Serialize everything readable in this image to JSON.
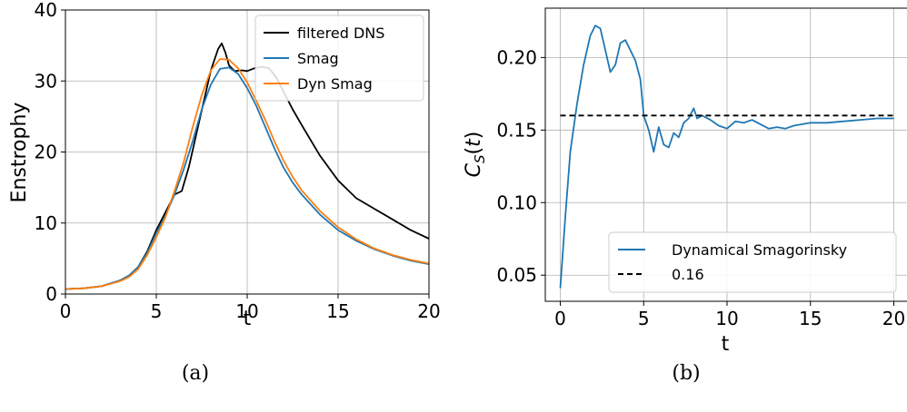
{
  "chart_data": [
    {
      "type": "line",
      "caption": "(a)",
      "xlabel": "t",
      "ylabel": "Enstrophy",
      "xlim": [
        0,
        20
      ],
      "ylim": [
        0,
        40
      ],
      "xticks": [
        0,
        5,
        10,
        15,
        20
      ],
      "yticks": [
        0,
        10,
        20,
        30,
        40
      ],
      "grid": true,
      "legend_position": "top-right",
      "series": [
        {
          "name": "filtered DNS",
          "color": "#000000",
          "x": [
            0,
            1,
            2,
            3,
            3.5,
            4,
            4.5,
            5,
            5.5,
            6,
            6.4,
            6.8,
            7.2,
            7.6,
            8,
            8.4,
            8.6,
            8.8,
            9,
            9.3,
            9.7,
            10,
            10.4,
            10.8,
            11.2,
            11.6,
            12,
            12.5,
            13,
            14,
            15,
            16,
            17,
            18,
            19,
            20
          ],
          "y": [
            0.7,
            0.8,
            1.1,
            1.9,
            2.6,
            3.8,
            6,
            9,
            11.5,
            14,
            14.5,
            18,
            22.5,
            27,
            31.5,
            34.5,
            35.3,
            34,
            32.2,
            31.4,
            31.5,
            31.4,
            31.8,
            32,
            31.8,
            30.5,
            28.5,
            26,
            23.8,
            19.5,
            16,
            13.5,
            12,
            10.5,
            9,
            7.8
          ]
        },
        {
          "name": "Smag",
          "color": "#1f77b4",
          "x": [
            0,
            1,
            2,
            3,
            3.5,
            4,
            4.5,
            5,
            5.5,
            6,
            6.5,
            7,
            7.5,
            8,
            8.5,
            9,
            9.5,
            10,
            10.5,
            11,
            11.5,
            12,
            12.5,
            13,
            14,
            15,
            16,
            17,
            18,
            19,
            20
          ],
          "y": [
            0.7,
            0.8,
            1.1,
            1.9,
            2.6,
            3.8,
            5.8,
            8.6,
            11,
            14,
            17.5,
            21.5,
            26,
            29.5,
            31.7,
            31.9,
            31,
            29,
            26.5,
            23.5,
            20.5,
            17.8,
            15.7,
            14,
            11.2,
            9,
            7.5,
            6.3,
            5.4,
            4.7,
            4.2
          ]
        },
        {
          "name": "Dyn Smag",
          "color": "#ff7f0e",
          "x": [
            0,
            1,
            2,
            3,
            3.5,
            4,
            4.5,
            5,
            5.5,
            6,
            6.5,
            7,
            7.5,
            8,
            8.5,
            9,
            9.5,
            10,
            10.5,
            11,
            11.5,
            12,
            12.5,
            13,
            14,
            15,
            16,
            17,
            18,
            19,
            20
          ],
          "y": [
            0.7,
            0.8,
            1.1,
            1.8,
            2.4,
            3.5,
            5.5,
            8,
            10.8,
            14.5,
            18.5,
            23.5,
            28,
            31.5,
            33.1,
            33,
            31.8,
            29.8,
            27.2,
            24.5,
            21.5,
            18.8,
            16.5,
            14.6,
            11.7,
            9.4,
            7.7,
            6.4,
            5.5,
            4.8,
            4.3
          ]
        }
      ]
    },
    {
      "type": "line",
      "caption": "(b)",
      "xlabel": "t",
      "ylabel": "C_S(t)",
      "xlim": [
        -0.9,
        20.9
      ],
      "ylim": [
        0.032,
        0.234
      ],
      "xticks": [
        0,
        5,
        10,
        15,
        20
      ],
      "yticks": [
        0.05,
        0.1,
        0.15,
        0.2
      ],
      "yticklabels": [
        "0.05",
        "0.10",
        "0.15",
        "0.20"
      ],
      "grid": true,
      "legend_position": "bottom-right",
      "series": [
        {
          "name": "Dynamical Smagorinsky",
          "color": "#1f77b4",
          "x": [
            0,
            0.3,
            0.6,
            1,
            1.4,
            1.8,
            2.1,
            2.4,
            2.7,
            3,
            3.3,
            3.6,
            3.9,
            4.2,
            4.5,
            4.8,
            5,
            5.3,
            5.6,
            5.9,
            6.2,
            6.5,
            6.8,
            7.1,
            7.4,
            7.7,
            8,
            8.2,
            8.5,
            9,
            9.5,
            10,
            10.5,
            11,
            11.5,
            12,
            12.5,
            13,
            13.5,
            14,
            14.5,
            15,
            16,
            17,
            18,
            19,
            20
          ],
          "y": [
            0.041,
            0.09,
            0.135,
            0.168,
            0.195,
            0.215,
            0.222,
            0.22,
            0.205,
            0.19,
            0.195,
            0.21,
            0.212,
            0.205,
            0.198,
            0.185,
            0.16,
            0.15,
            0.135,
            0.152,
            0.14,
            0.138,
            0.148,
            0.145,
            0.155,
            0.158,
            0.165,
            0.158,
            0.16,
            0.157,
            0.153,
            0.151,
            0.156,
            0.155,
            0.157,
            0.154,
            0.151,
            0.152,
            0.151,
            0.153,
            0.154,
            0.155,
            0.155,
            0.156,
            0.157,
            0.158,
            0.158
          ]
        },
        {
          "name": "0.16",
          "color": "#000000",
          "dashed": true,
          "x": [
            0,
            20
          ],
          "y": [
            0.16,
            0.16
          ]
        }
      ]
    }
  ]
}
